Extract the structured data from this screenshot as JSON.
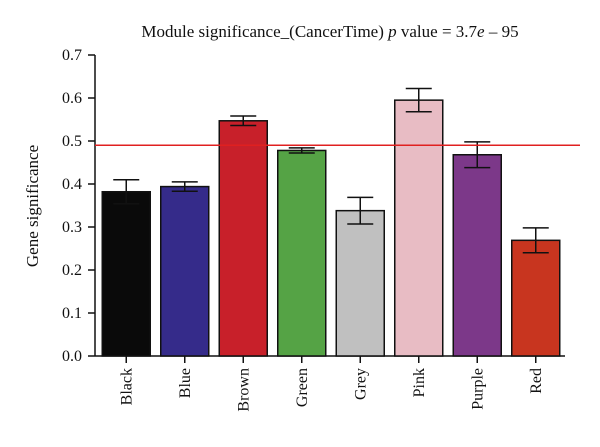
{
  "chart_data": {
    "type": "bar",
    "title_prefix": "Module significance_(CancerTime) ",
    "title_p": "p",
    "title_mid": " value = 3.7",
    "title_e": "e",
    "title_suffix": " – 95",
    "xlabel": "",
    "ylabel": "Gene significance",
    "ylim": [
      0,
      0.7
    ],
    "yticks": [
      "0.0",
      "0.1",
      "0.2",
      "0.3",
      "0.4",
      "0.5",
      "0.6",
      "0.7"
    ],
    "categories": [
      "Black",
      "Blue",
      "Brown",
      "Green",
      "Grey",
      "Pink",
      "Purple",
      "Red"
    ],
    "values": [
      0.382,
      0.394,
      0.547,
      0.478,
      0.338,
      0.595,
      0.468,
      0.269
    ],
    "error": [
      0.028,
      0.011,
      0.011,
      0.006,
      0.031,
      0.027,
      0.03,
      0.029
    ],
    "colors": [
      "#0a0a0a",
      "#352b8a",
      "#c8202a",
      "#55a345",
      "#c0c0c0",
      "#e8bcc4",
      "#7c3889",
      "#c8351f"
    ],
    "reference_line": {
      "value": 0.49,
      "color": "#e02020"
    },
    "grid": false
  }
}
